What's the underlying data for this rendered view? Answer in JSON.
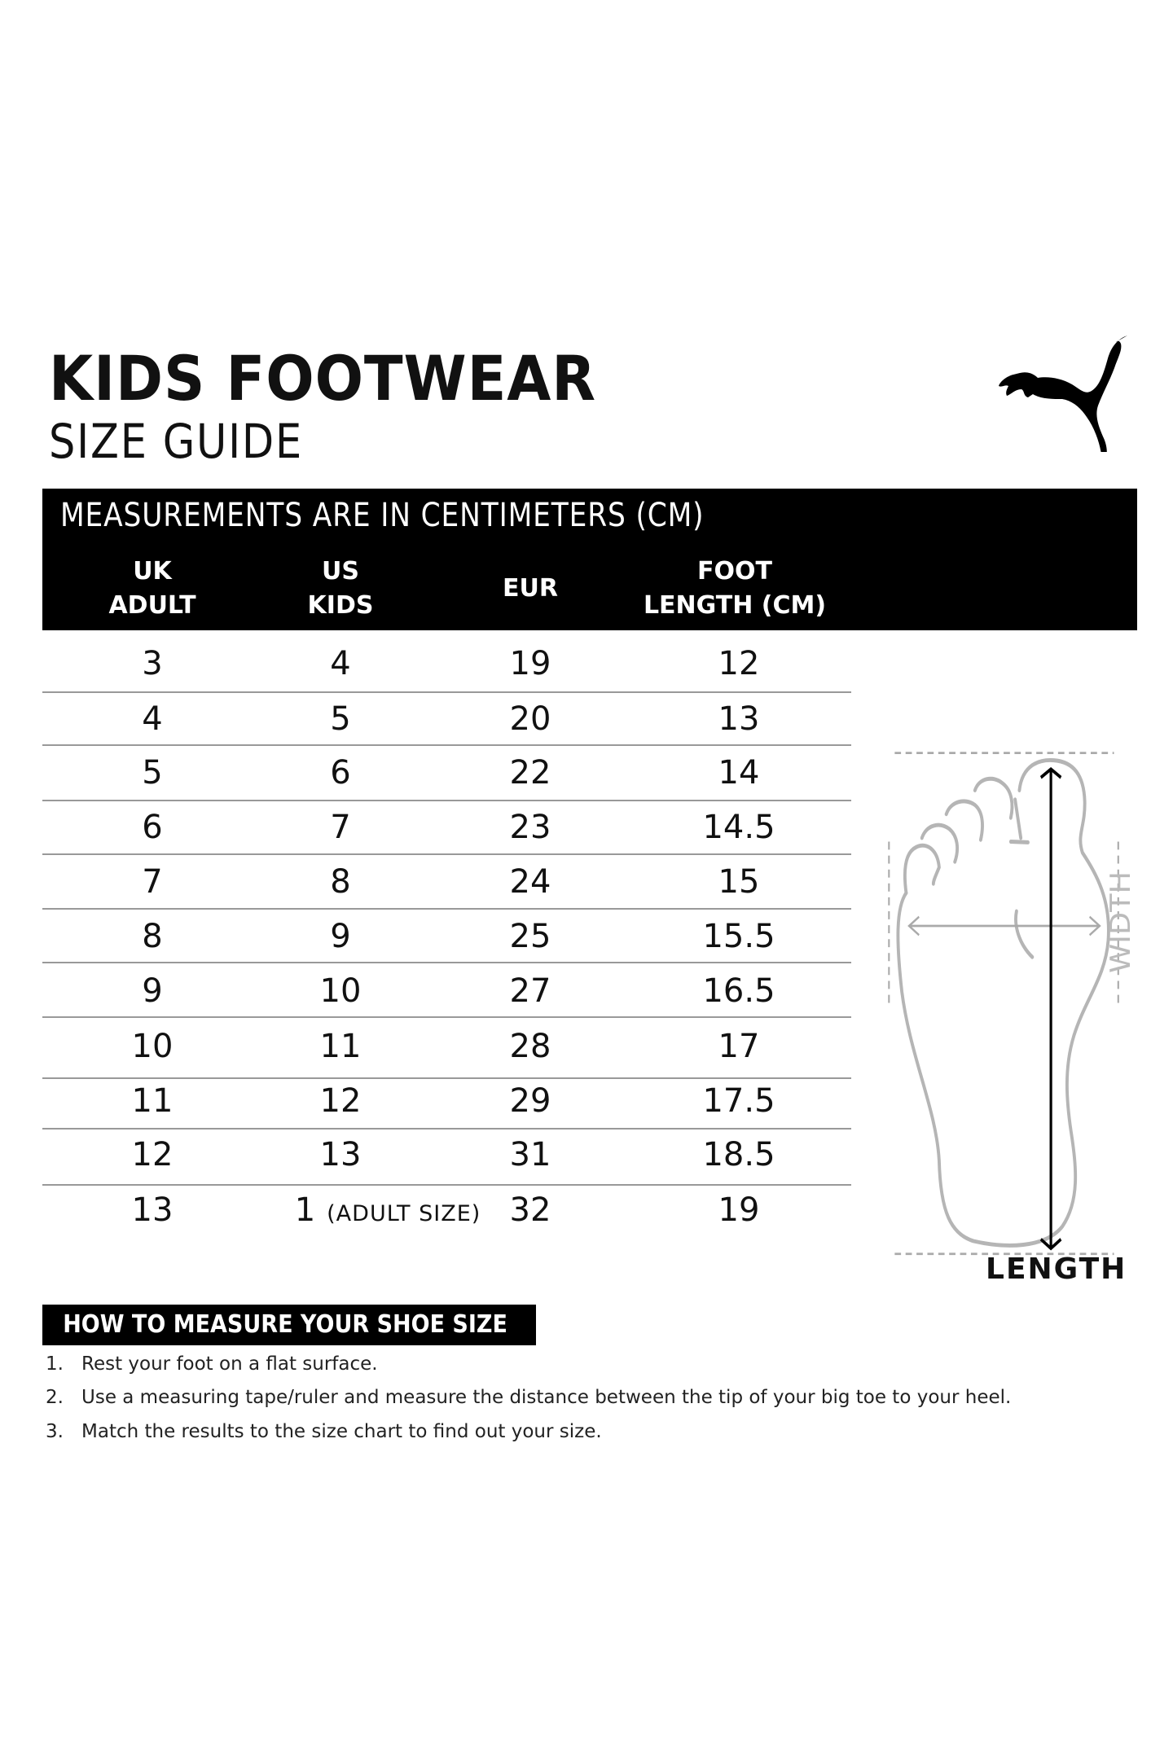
{
  "header": {
    "title": "KIDS FOOTWEAR",
    "subtitle": "SIZE GUIDE",
    "logo": "PUMA"
  },
  "table": {
    "note": "MEASUREMENTS ARE IN CENTIMETERS (CM)",
    "columns": [
      {
        "line1": "UK",
        "line2": "ADULT"
      },
      {
        "line1": "US",
        "line2": "KIDS"
      },
      {
        "line1": "EUR",
        "line2": ""
      },
      {
        "line1": "FOOT",
        "line2": "LENGTH (CM)"
      }
    ],
    "rows": [
      {
        "uk": "3",
        "us": "4",
        "us_note": "",
        "eur": "19",
        "cm": "12"
      },
      {
        "uk": "4",
        "us": "5",
        "us_note": "",
        "eur": "20",
        "cm": "13"
      },
      {
        "uk": "5",
        "us": "6",
        "us_note": "",
        "eur": "22",
        "cm": "14"
      },
      {
        "uk": "6",
        "us": "7",
        "us_note": "",
        "eur": "23",
        "cm": "14.5"
      },
      {
        "uk": "7",
        "us": "8",
        "us_note": "",
        "eur": "24",
        "cm": "15"
      },
      {
        "uk": "8",
        "us": "9",
        "us_note": "",
        "eur": "25",
        "cm": "15.5"
      },
      {
        "uk": "9",
        "us": "10",
        "us_note": "",
        "eur": "27",
        "cm": "16.5"
      },
      {
        "uk": "10",
        "us": "11",
        "us_note": "",
        "eur": "28",
        "cm": "17"
      },
      {
        "uk": "11",
        "us": "12",
        "us_note": "",
        "eur": "29",
        "cm": "17.5"
      },
      {
        "uk": "12",
        "us": "13",
        "us_note": "",
        "eur": "31",
        "cm": "18.5"
      },
      {
        "uk": "13",
        "us": "1",
        "us_note": "(ADULT SIZE)",
        "eur": "32",
        "cm": "19"
      }
    ]
  },
  "diagram": {
    "width_label": "WIDTH",
    "length_label": "LENGTH"
  },
  "how_to": {
    "title": "HOW TO MEASURE YOUR SHOE SIZE",
    "steps": [
      {
        "num": "1.",
        "text": "Rest your foot on a flat surface."
      },
      {
        "num": "2.",
        "text": "Use a measuring tape/ruler and measure the distance between the tip of your big toe to your heel."
      },
      {
        "num": "3.",
        "text": "Match the results to the size chart to find out your size."
      }
    ]
  },
  "colors": {
    "header_bg": "#000000",
    "foot_outline": "#b5b5b5",
    "rule": "#999999"
  }
}
